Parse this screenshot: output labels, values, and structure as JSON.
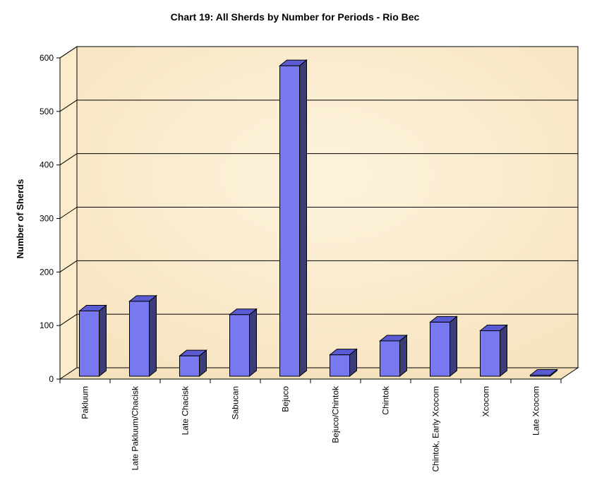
{
  "chart_data": {
    "type": "bar",
    "title": "Chart 19:  All Sherds by Number for Periods - Rio Bec",
    "xlabel": "",
    "ylabel": "Number of Sherds",
    "ylim": [
      0,
      600
    ],
    "yticks": [
      0,
      100,
      200,
      300,
      400,
      500,
      600
    ],
    "grid": true,
    "style": "3d",
    "categories": [
      "Pakluum",
      "Late Pakluum/Chacisk",
      "Late Chacisk",
      "Sabucan",
      "Bejuco",
      "Bejuco/Chintok",
      "Chintok",
      "Chintok, Early Xcocom",
      "Xcocom",
      "Late Xcocom"
    ],
    "values": [
      122,
      140,
      38,
      115,
      580,
      40,
      66,
      101,
      85,
      2
    ],
    "colors": {
      "bar_front": "#7878f0",
      "bar_top": "#5a5ad2",
      "bar_side": "#3c3c78",
      "wall": "#fbeccc",
      "floor": "#f5e2bc",
      "grid": "#000000"
    }
  }
}
